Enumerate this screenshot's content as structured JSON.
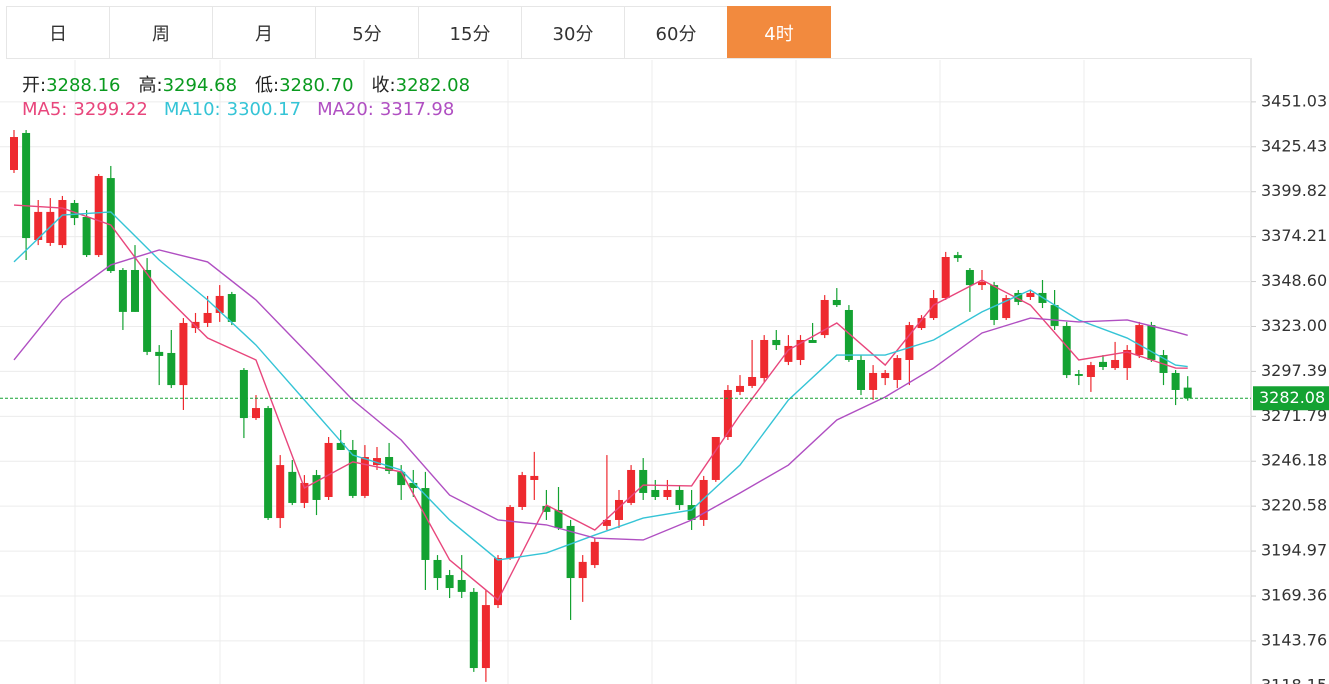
{
  "tabs": [
    "日",
    "周",
    "月",
    "5分",
    "15分",
    "30分",
    "60分",
    "4时"
  ],
  "active_tab": 7,
  "quote": [
    {
      "label": "开:",
      "value": "3288.16"
    },
    {
      "label": "高:",
      "value": "3294.68"
    },
    {
      "label": "低:",
      "value": "3280.70"
    },
    {
      "label": "收:",
      "value": "3282.08"
    }
  ],
  "chart_data": {
    "type": "candlestick",
    "open": [
      3412.2,
      3433.3,
      3372.3,
      3370.6,
      3369.4,
      3393.4,
      3385.4,
      3363.7,
      3407.6,
      3355.2,
      3355.2,
      3355.2,
      3308.5,
      3307.9,
      3289.6,
      3322.1,
      3325.0,
      3330.7,
      3341.5,
      3298.2,
      3270.8,
      3276.5,
      3213.8,
      3240.1,
      3222.4,
      3238.3,
      3225.8,
      3256.6,
      3252.6,
      3226.4,
      3244.0,
      3248.6,
      3240.1,
      3233.8,
      3230.9,
      3189.9,
      3181.3,
      3178.5,
      3171.7,
      3128.3,
      3164.2,
      3191.0,
      3220.1,
      3235.5,
      3220.7,
      3218.4,
      3209.3,
      3179.6,
      3187.0,
      3209.3,
      3212.7,
      3222.4,
      3241.2,
      3229.8,
      3225.8,
      3229.8,
      3221.2,
      3212.7,
      3235.5,
      3260.0,
      3285.7,
      3289.1,
      3293.6,
      3315.3,
      3302.8,
      3303.9,
      3315.3,
      3318.1,
      3338.1,
      3332.4,
      3303.9,
      3286.8,
      3293.6,
      3292.5,
      3303.9,
      3322.1,
      3327.8,
      3339.2,
      3363.7,
      3355.2,
      3346.6,
      3346.6,
      3327.8,
      3342.1,
      3339.8,
      3342.1,
      3335.2,
      3323.3,
      3295.9,
      3294.2,
      3302.8,
      3299.3,
      3299.3,
      3306.7,
      3323.8,
      3306.7,
      3296.5,
      3288.16
    ],
    "high": [
      3435.0,
      3435.0,
      3395.1,
      3396.2,
      3397.4,
      3395.1,
      3389.4,
      3409.9,
      3414.5,
      3356.3,
      3369.4,
      3362.0,
      3312.4,
      3321.0,
      3327.8,
      3330.7,
      3340.4,
      3346.6,
      3342.7,
      3299.3,
      3283.9,
      3277.7,
      3249.7,
      3246.9,
      3238.3,
      3241.2,
      3260.0,
      3264.0,
      3258.3,
      3255.4,
      3254.3,
      3256.6,
      3244.0,
      3241.2,
      3240.1,
      3192.7,
      3184.2,
      3192.7,
      3173.9,
      3172.8,
      3192.7,
      3221.2,
      3240.1,
      3251.5,
      3229.8,
      3231.5,
      3212.7,
      3192.7,
      3202.4,
      3249.7,
      3229.8,
      3244.0,
      3248.0,
      3235.5,
      3235.5,
      3232.6,
      3229.8,
      3237.8,
      3260.0,
      3289.6,
      3295.3,
      3315.3,
      3318.1,
      3321.0,
      3318.1,
      3318.1,
      3325.0,
      3340.9,
      3344.9,
      3335.2,
      3306.7,
      3301.0,
      3298.2,
      3306.7,
      3325.6,
      3329.5,
      3343.8,
      3365.5,
      3365.5,
      3356.3,
      3355.2,
      3348.4,
      3340.9,
      3343.8,
      3343.8,
      3349.5,
      3343.8,
      3325.6,
      3298.2,
      3302.8,
      3306.7,
      3314.2,
      3312.4,
      3325.6,
      3325.6,
      3309.6,
      3298.2,
      3294.68
    ],
    "low": [
      3410.5,
      3360.9,
      3369.4,
      3368.9,
      3367.7,
      3380.8,
      3362.6,
      3362.6,
      3353.5,
      3321.0,
      3331.3,
      3306.7,
      3289.6,
      3287.9,
      3275.4,
      3319.3,
      3322.7,
      3325.6,
      3323.8,
      3259.4,
      3269.7,
      3212.7,
      3208.1,
      3221.2,
      3219.5,
      3215.5,
      3224.1,
      3252.6,
      3225.2,
      3225.2,
      3241.2,
      3238.9,
      3224.1,
      3225.8,
      3172.8,
      3172.8,
      3168.2,
      3168.2,
      3126.1,
      3120.4,
      3162.5,
      3189.9,
      3218.4,
      3224.1,
      3212.7,
      3207.0,
      3155.7,
      3166.0,
      3185.3,
      3207.0,
      3208.1,
      3221.2,
      3224.1,
      3224.1,
      3224.1,
      3218.4,
      3207.0,
      3209.3,
      3234.4,
      3258.3,
      3283.9,
      3287.9,
      3291.4,
      3309.6,
      3301.0,
      3301.0,
      3314.2,
      3316.4,
      3334.1,
      3302.8,
      3283.9,
      3281.1,
      3289.6,
      3287.9,
      3289.6,
      3321.0,
      3326.7,
      3338.1,
      3359.8,
      3331.3,
      3343.8,
      3323.8,
      3326.7,
      3335.2,
      3338.1,
      3333.5,
      3321.0,
      3293.6,
      3289.6,
      3285.7,
      3298.2,
      3298.2,
      3292.5,
      3305.0,
      3302.8,
      3289.6,
      3278.2,
      3280.7
    ],
    "close": [
      3431.0,
      3373.4,
      3388.3,
      3388.3,
      3395.1,
      3384.8,
      3363.7,
      3408.8,
      3354.6,
      3331.3,
      3331.3,
      3308.5,
      3306.2,
      3289.6,
      3325.0,
      3325.6,
      3330.7,
      3340.4,
      3325.6,
      3270.8,
      3276.5,
      3213.8,
      3244.0,
      3222.4,
      3233.8,
      3224.1,
      3256.6,
      3252.6,
      3226.4,
      3248.6,
      3248.0,
      3240.6,
      3232.6,
      3230.9,
      3189.9,
      3179.6,
      3173.9,
      3171.7,
      3128.3,
      3164.2,
      3191.0,
      3220.1,
      3238.3,
      3237.8,
      3217.3,
      3208.1,
      3179.6,
      3188.8,
      3200.2,
      3212.7,
      3224.1,
      3241.2,
      3228.1,
      3225.8,
      3229.8,
      3221.2,
      3212.7,
      3235.5,
      3260.0,
      3286.8,
      3289.1,
      3294.2,
      3315.3,
      3312.4,
      3311.9,
      3315.3,
      3313.6,
      3338.1,
      3335.2,
      3303.9,
      3286.8,
      3296.5,
      3296.5,
      3305.0,
      3323.8,
      3327.8,
      3339.2,
      3362.6,
      3362.0,
      3346.6,
      3348.4,
      3326.7,
      3339.2,
      3337.0,
      3342.1,
      3336.4,
      3323.3,
      3295.3,
      3294.8,
      3301.0,
      3299.9,
      3303.9,
      3309.6,
      3323.8,
      3303.9,
      3296.5,
      3286.8,
      3282.08
    ],
    "up_color": "#ee2a2f",
    "down_color": "#14a232",
    "series": [
      {
        "name": "MA5:",
        "legend_value": "3299.22",
        "color": "#e8467c",
        "x": [
          0,
          4,
          8,
          12,
          16,
          20,
          24,
          28,
          32,
          36,
          40,
          44,
          48,
          52,
          56,
          60,
          64,
          68,
          72,
          76,
          80,
          84,
          88,
          92,
          96,
          97
        ],
        "values": [
          3392.2,
          3390.5,
          3380.9,
          3343.8,
          3316.4,
          3303.9,
          3230.9,
          3245.8,
          3240.1,
          3189.9,
          3167.1,
          3221.2,
          3207.0,
          3232.6,
          3232.1,
          3272.6,
          3309.6,
          3325.0,
          3301.0,
          3335.2,
          3349.5,
          3335.2,
          3303.9,
          3308.5,
          3299.3,
          3299.22
        ]
      },
      {
        "name": "MA10:",
        "legend_value": "3300.17",
        "color": "#35c4d6",
        "x": [
          0,
          4,
          8,
          12,
          16,
          20,
          24,
          28,
          32,
          36,
          40,
          44,
          48,
          52,
          56,
          60,
          64,
          68,
          72,
          76,
          80,
          84,
          88,
          92,
          96,
          97
        ],
        "values": [
          3359.8,
          3386.5,
          3388.3,
          3360.9,
          3338.1,
          3312.4,
          3281.1,
          3249.7,
          3241.2,
          3212.7,
          3189.9,
          3193.9,
          3204.1,
          3213.8,
          3218.4,
          3244.0,
          3281.1,
          3306.7,
          3306.7,
          3315.3,
          3331.3,
          3343.8,
          3326.7,
          3316.4,
          3301.0,
          3300.17
        ]
      },
      {
        "name": "MA20:",
        "legend_value": "3317.98",
        "color": "#b04fc2",
        "x": [
          0,
          4,
          8,
          12,
          16,
          20,
          24,
          28,
          32,
          36,
          40,
          44,
          48,
          52,
          56,
          60,
          64,
          68,
          72,
          76,
          80,
          84,
          88,
          92,
          96,
          97
        ],
        "values": [
          3303.9,
          3338.1,
          3358.1,
          3366.6,
          3359.8,
          3338.1,
          3309.6,
          3281.1,
          3258.3,
          3226.9,
          3212.7,
          3209.9,
          3202.4,
          3201.3,
          3212.7,
          3228.1,
          3244.0,
          3269.7,
          3282.8,
          3299.3,
          3319.3,
          3327.8,
          3325.6,
          3326.7,
          3319.9,
          3317.98
        ]
      }
    ],
    "last_price": 3282.08,
    "ylim": [
      3119.2,
      3474.9
    ],
    "yticks": [
      3451.03,
      3425.43,
      3399.82,
      3374.21,
      {
        "value": 3348.6,
        "label": "3348.60"
      },
      {
        "value": 3323.0,
        "label": "3323.00"
      },
      3297.39,
      3271.79,
      3246.18,
      3220.58,
      3194.97,
      3169.36,
      3143.76,
      3118.15
    ],
    "grid": true
  }
}
